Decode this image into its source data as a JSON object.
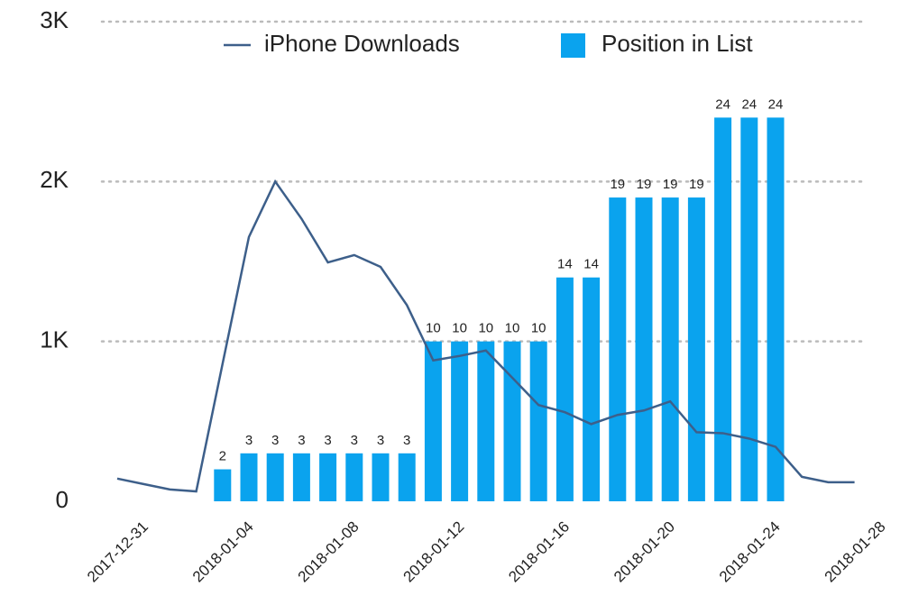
{
  "chart_data": {
    "type": "bar-line",
    "categories": [
      "2017-12-31",
      null,
      null,
      null,
      "2018-01-04",
      null,
      null,
      null,
      "2018-01-08",
      null,
      null,
      null,
      "2018-01-12",
      null,
      null,
      null,
      "2018-01-16",
      null,
      null,
      null,
      "2018-01-20",
      null,
      null,
      null,
      "2018-01-24",
      null,
      null,
      null,
      "2018-01-28"
    ],
    "series": [
      {
        "name": "iPhone Downloads",
        "type": "line",
        "color": "#3d5f8a",
        "values": [
          142,
          108,
          74,
          62,
          860,
          1653,
          2000,
          1767,
          1494,
          1540,
          1466,
          1227,
          881,
          909,
          943,
          773,
          602,
          557,
          483,
          540,
          568,
          625,
          432,
          426,
          392,
          341,
          153,
          119,
          119
        ]
      },
      {
        "name": "Position in List",
        "type": "bar",
        "color": "#0aa3ee",
        "axis": "y2",
        "values": [
          null,
          null,
          null,
          null,
          2,
          3,
          3,
          3,
          3,
          3,
          3,
          3,
          10,
          10,
          10,
          10,
          10,
          14,
          14,
          19,
          19,
          19,
          19,
          24,
          24,
          24,
          null,
          null,
          null
        ]
      }
    ],
    "ylim": [
      0,
      3000
    ],
    "yticks": [
      {
        "value": 0,
        "label": "0"
      },
      {
        "value": 1000,
        "label": "1K"
      },
      {
        "value": 2000,
        "label": "2K"
      },
      {
        "value": 3000,
        "label": "3K"
      }
    ],
    "y2lim": [
      0,
      30
    ],
    "grid": true,
    "legend": "top"
  }
}
